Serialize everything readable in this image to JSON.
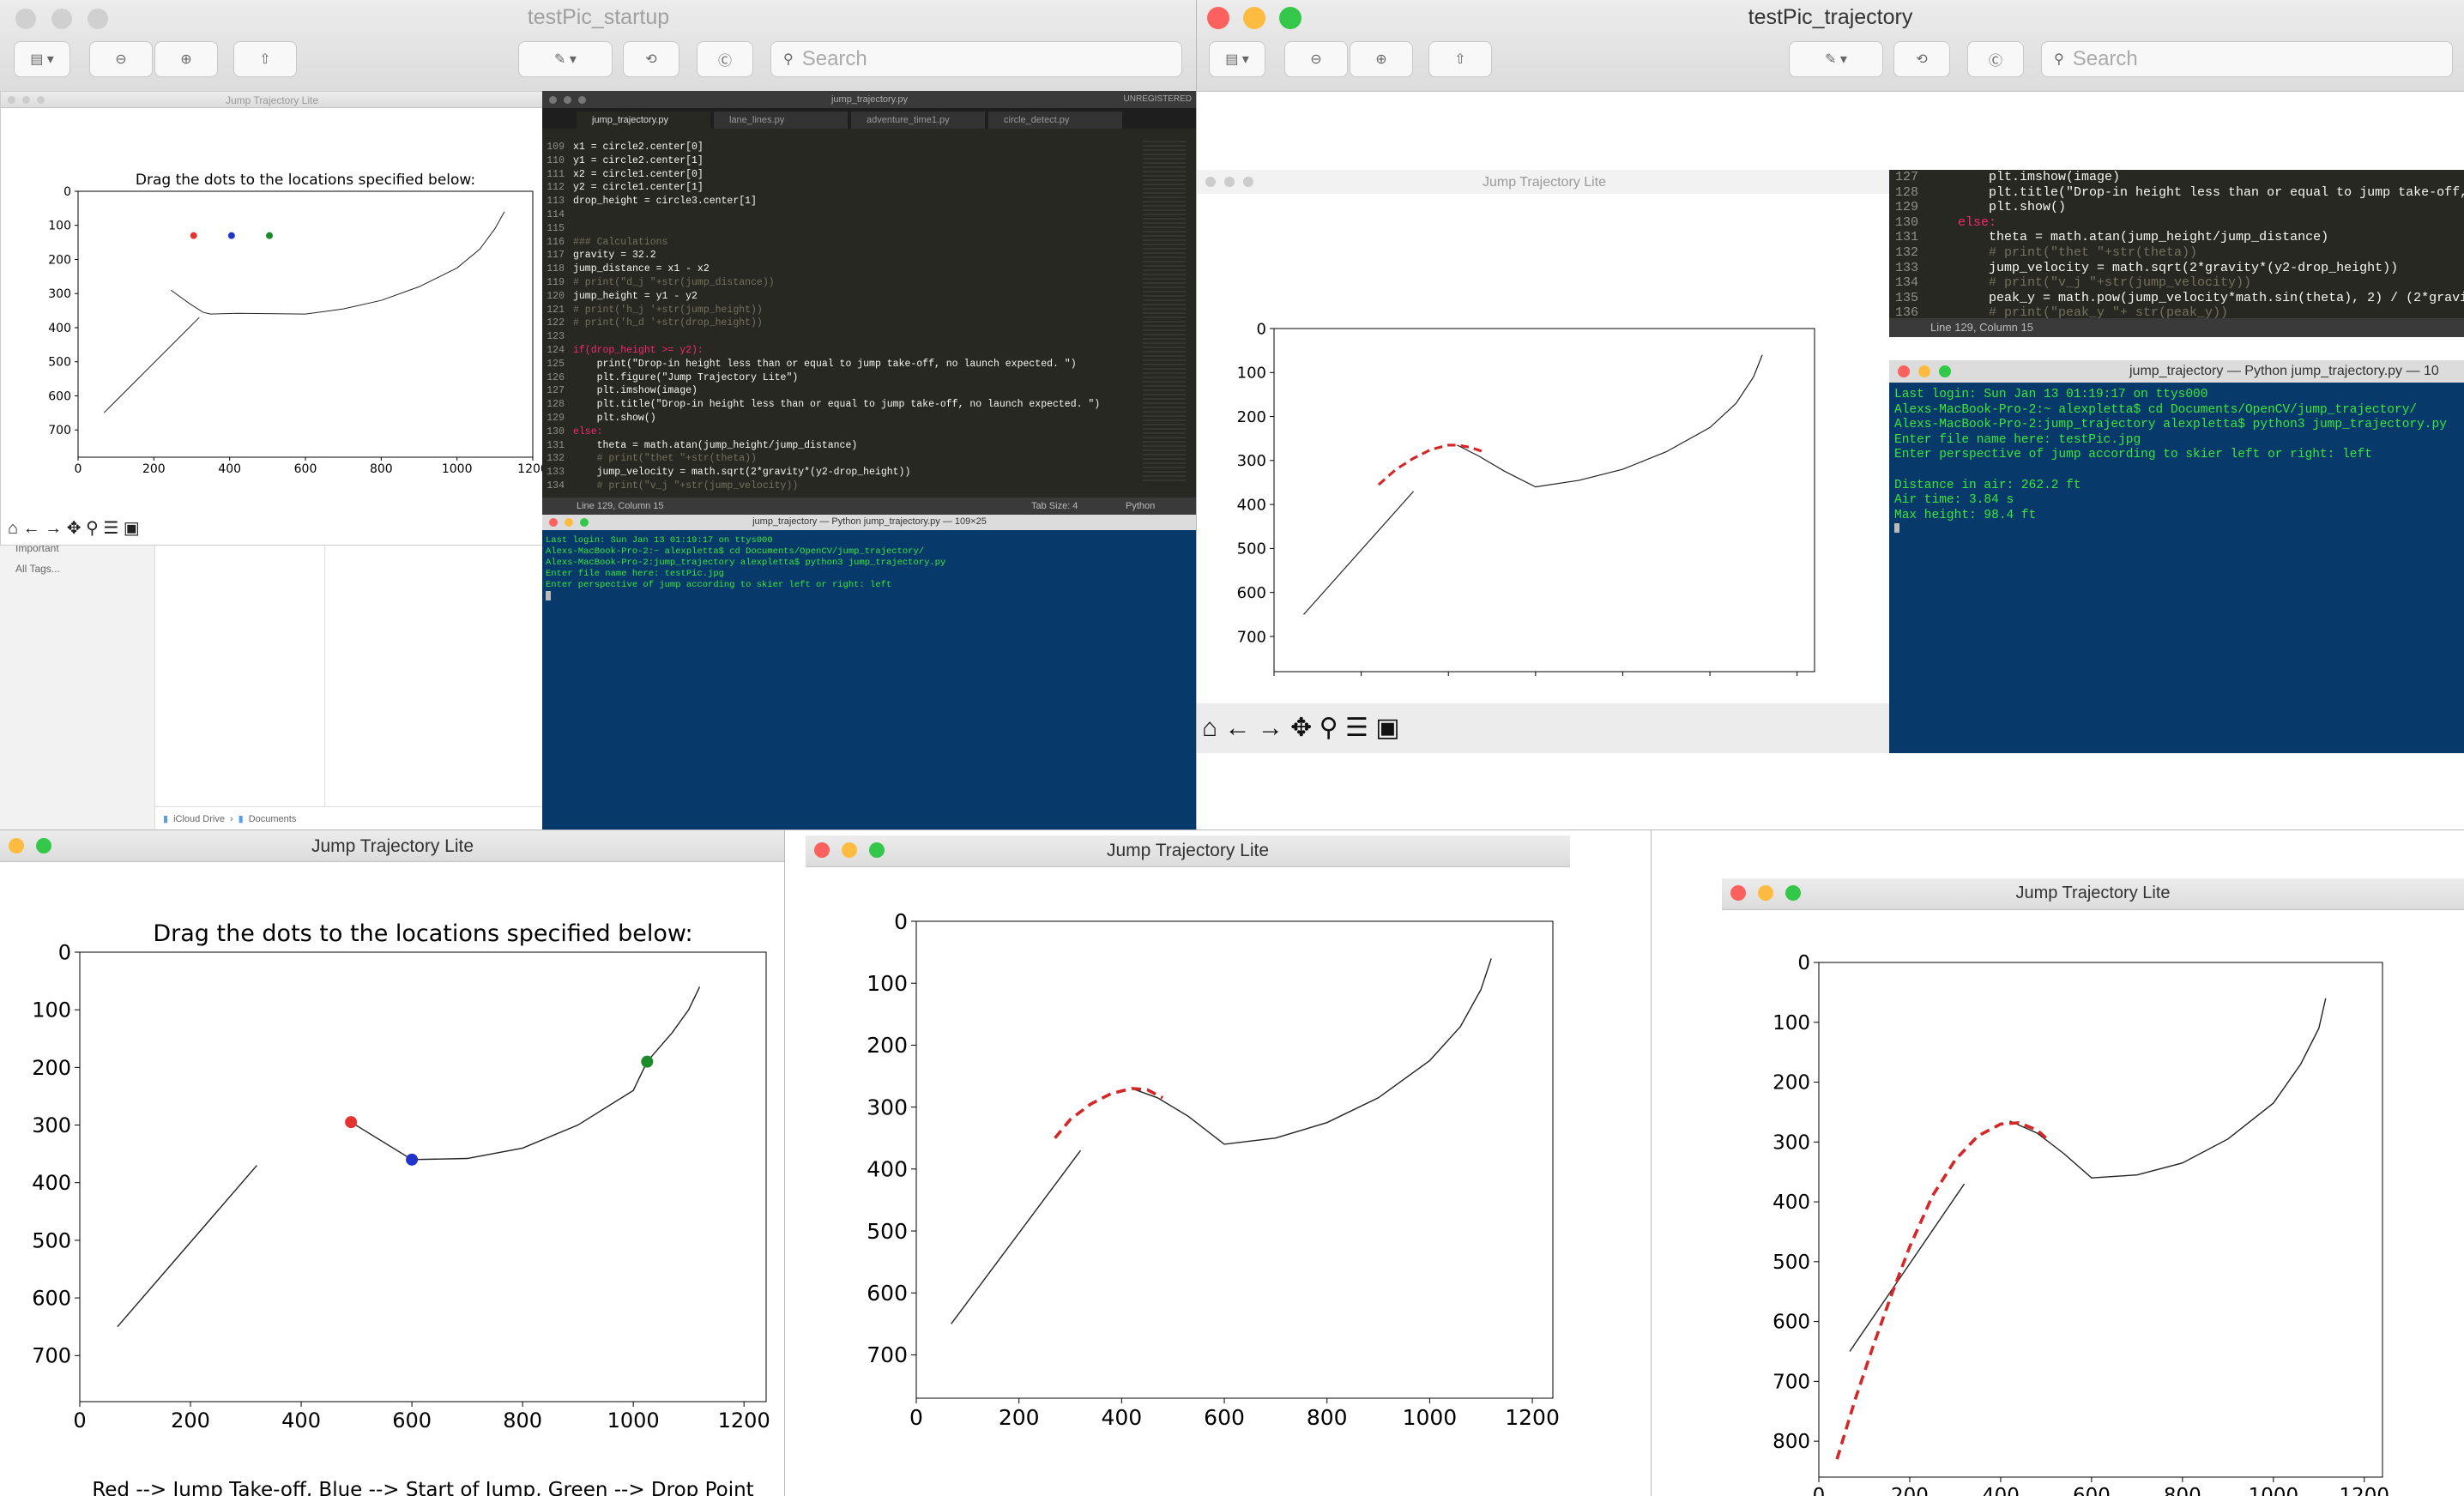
{
  "windows": {
    "preview_startup": {
      "title": "testPic_startup",
      "search_placeholder": "Search"
    },
    "preview_trajectory": {
      "title": "testPic_trajectory",
      "search_placeholder": "Search"
    },
    "mini_plot": {
      "title": "Jump Trajectory Lite",
      "heading": "Drag the dots to the locations specified below:",
      "caption": "Red --> Jump Take-off, Blue --> Start of Jump, Green --> Drop Point"
    },
    "finder_sidebar": {
      "items": [
        "Important",
        "All Tags..."
      ],
      "path": [
        "iCloud Drive",
        "Documents"
      ]
    },
    "editor": {
      "title": "jump_trajectory.py",
      "unregistered": "UNREGISTERED",
      "tabs": [
        "jump_trajectory.py",
        "lane_lines.py",
        "adventure_time1.py",
        "circle_detect.py"
      ],
      "status_left": "Line 129, Column 15",
      "status_tab": "Tab Size: 4",
      "status_lang": "Python",
      "lines": [
        {
          "n": "109",
          "t": "x1 = circle2.center[0]"
        },
        {
          "n": "110",
          "t": "y1 = circle2.center[1]"
        },
        {
          "n": "111",
          "t": "x2 = circle1.center[0]"
        },
        {
          "n": "112",
          "t": "y2 = circle1.center[1]"
        },
        {
          "n": "113",
          "t": "drop_height = circle3.center[1]"
        },
        {
          "n": "114",
          "t": ""
        },
        {
          "n": "115",
          "t": ""
        },
        {
          "n": "116",
          "t": "### Calculations"
        },
        {
          "n": "117",
          "t": "gravity = 32.2"
        },
        {
          "n": "118",
          "t": "jump_distance = x1 - x2"
        },
        {
          "n": "119",
          "t": "# print(\"d_j \"+str(jump_distance))"
        },
        {
          "n": "120",
          "t": "jump_height = y1 - y2"
        },
        {
          "n": "121",
          "t": "# print('h_j '+str(jump_height))"
        },
        {
          "n": "122",
          "t": "# print('h_d '+str(drop_height))"
        },
        {
          "n": "123",
          "t": ""
        },
        {
          "n": "124",
          "t": "if(drop_height >= y2):"
        },
        {
          "n": "125",
          "t": "    print(\"Drop-in height less than or equal to jump take-off, no launch expected. \")"
        },
        {
          "n": "126",
          "t": "    plt.figure(\"Jump Trajectory Lite\")"
        },
        {
          "n": "127",
          "t": "    plt.imshow(image)"
        },
        {
          "n": "128",
          "t": "    plt.title(\"Drop-in height less than or equal to jump take-off, no launch expected. \")"
        },
        {
          "n": "129",
          "t": "    plt.show()"
        },
        {
          "n": "130",
          "t": "else:"
        },
        {
          "n": "131",
          "t": "    theta = math.atan(jump_height/jump_distance)"
        },
        {
          "n": "132",
          "t": "    # print(\"thet \"+str(theta))"
        },
        {
          "n": "133",
          "t": "    jump_velocity = math.sqrt(2*gravity*(y2-drop_height))"
        },
        {
          "n": "134",
          "t": "    # print(\"v_j \"+str(jump_velocity))"
        },
        {
          "n": "135",
          "t": "    peak_y = math.pow(jump_velocity*math.sin(theta), 2) / (2*gravity)"
        },
        {
          "n": "136",
          "t": "    # print(\"peak_y \"+ str(peak_y))"
        }
      ]
    },
    "terminal_small": {
      "title": "jump_trajectory — Python jump_trajectory.py — 109×25",
      "lines": [
        "Last login: Sun Jan 13 01:19:17 on ttys000",
        "Alexs-MacBook-Pro-2:~ alexpletta$ cd Documents/OpenCV/jump_trajectory/",
        "Alexs-MacBook-Pro-2:jump_trajectory alexpletta$ python3 jump_trajectory.py",
        "Enter file name here: testPic.jpg",
        "Enter perspective of jump according to skier left or right: left"
      ]
    },
    "right_editor": {
      "status_left": "Line 129, Column 15",
      "lines": [
        {
          "n": "127",
          "t": "        plt.imshow(image)"
        },
        {
          "n": "128",
          "t": "        plt.title(\"Drop-in height less than or equal to jump take-off, n"
        },
        {
          "n": "129",
          "t": "        plt.show()"
        },
        {
          "n": "130",
          "t": "    else:"
        },
        {
          "n": "131",
          "t": "        theta = math.atan(jump_height/jump_distance)"
        },
        {
          "n": "132",
          "t": "        # print(\"thet \"+str(theta))"
        },
        {
          "n": "133",
          "t": "        jump_velocity = math.sqrt(2*gravity*(y2-drop_height))"
        },
        {
          "n": "134",
          "t": "        # print(\"v_j \"+str(jump_velocity))"
        },
        {
          "n": "135",
          "t": "        peak_y = math.pow(jump_velocity*math.sin(theta), 2) / (2*gravity"
        },
        {
          "n": "136",
          "t": "        # print(\"peak_y \"+ str(peak_y))"
        }
      ]
    },
    "terminal_right": {
      "title": "jump_trajectory — Python jump_trajectory.py — 10",
      "lines": [
        "Last login: Sun Jan 13 01:19:17 on ttys000",
        "Alexs-MacBook-Pro-2:~ alexpletta$ cd Documents/OpenCV/jump_trajectory/",
        "Alexs-MacBook-Pro-2:jump_trajectory alexpletta$ python3 jump_trajectory.py",
        "Enter file name here: testPic.jpg",
        "Enter perspective of jump according to skier left or right: left",
        "",
        "Distance in air: 262.2 ft",
        "Air time: 3.84 s",
        "Max height: 98.4 ft"
      ]
    },
    "inner_plot_right": {
      "title": "Jump Trajectory Lite"
    },
    "bottom_left": {
      "title": "Jump Trajectory Lite",
      "heading": "Drag the dots to the locations specified below:",
      "caption": "Red --> Jump Take-off, Blue --> Start of Jump, Green --> Drop Point"
    },
    "bottom_mid": {
      "title": "Jump Trajectory Lite"
    },
    "bottom_right": {
      "title": "Jump Trajectory Lite"
    }
  },
  "colors": {
    "red_dot": "#e3342f",
    "blue_dot": "#2233cc",
    "green_dot": "#1a8a2a",
    "trajectory": "#d62728",
    "terminal_bg": "#073a6a",
    "terminal_text": "#39e639",
    "editor_bg": "#272822"
  },
  "chart_data": [
    {
      "id": "mini",
      "type": "line",
      "xlim": [
        0,
        1200
      ],
      "ylim": [
        780,
        0
      ],
      "xticks": [
        0,
        200,
        400,
        600,
        800,
        1000,
        1200
      ],
      "yticks": [
        0,
        100,
        200,
        300,
        400,
        500,
        600,
        700
      ],
      "terrain": [
        [
          [
            68,
            650
          ],
          [
            320,
            370
          ]
        ],
        [
          [
            245,
            290
          ],
          [
            295,
            330
          ],
          [
            330,
            355
          ],
          [
            350,
            360
          ],
          [
            420,
            358
          ],
          [
            600,
            360
          ],
          [
            700,
            345
          ],
          [
            800,
            320
          ],
          [
            900,
            280
          ],
          [
            1000,
            225
          ],
          [
            1060,
            170
          ],
          [
            1100,
            110
          ],
          [
            1125,
            60
          ]
        ]
      ],
      "dots": [
        {
          "color": "red",
          "x": 305,
          "y": 130
        },
        {
          "color": "blue",
          "x": 405,
          "y": 130
        },
        {
          "color": "green",
          "x": 505,
          "y": 130
        }
      ],
      "trajectory": []
    },
    {
      "id": "right-inner",
      "type": "line",
      "xlim": [
        0,
        1240
      ],
      "ylim": [
        780,
        0
      ],
      "xticks": [
        0,
        200,
        400,
        600,
        800,
        1000,
        1200
      ],
      "yticks": [
        0,
        100,
        200,
        300,
        400,
        500,
        600,
        700
      ],
      "terrain": [
        [
          [
            68,
            650
          ],
          [
            320,
            370
          ]
        ],
        [
          [
            420,
            265
          ],
          [
            470,
            290
          ],
          [
            530,
            325
          ],
          [
            600,
            360
          ],
          [
            700,
            345
          ],
          [
            800,
            320
          ],
          [
            900,
            280
          ],
          [
            1000,
            225
          ],
          [
            1060,
            170
          ],
          [
            1100,
            110
          ],
          [
            1120,
            60
          ]
        ]
      ],
      "dots": [],
      "trajectory": [
        [
          240,
          355
        ],
        [
          280,
          320
        ],
        [
          320,
          295
        ],
        [
          360,
          275
        ],
        [
          400,
          265
        ],
        [
          420,
          265
        ],
        [
          450,
          270
        ],
        [
          480,
          280
        ]
      ]
    },
    {
      "id": "bottom-left",
      "type": "line",
      "xlim": [
        0,
        1240
      ],
      "ylim": [
        780,
        0
      ],
      "xticks": [
        0,
        200,
        400,
        600,
        800,
        1000,
        1200
      ],
      "yticks": [
        0,
        100,
        200,
        300,
        400,
        500,
        600,
        700
      ],
      "terrain": [
        [
          [
            68,
            650
          ],
          [
            320,
            370
          ]
        ],
        [
          [
            490,
            295
          ],
          [
            600,
            360
          ],
          [
            700,
            358
          ],
          [
            800,
            340
          ],
          [
            900,
            300
          ],
          [
            1000,
            240
          ],
          [
            1025,
            190
          ],
          [
            1070,
            140
          ],
          [
            1100,
            100
          ],
          [
            1120,
            60
          ]
        ]
      ],
      "dots": [
        {
          "color": "red",
          "x": 490,
          "y": 295
        },
        {
          "color": "blue",
          "x": 600,
          "y": 360
        },
        {
          "color": "green",
          "x": 1025,
          "y": 190
        }
      ],
      "trajectory": []
    },
    {
      "id": "bottom-mid",
      "type": "line",
      "xlim": [
        0,
        1240
      ],
      "ylim": [
        770,
        0
      ],
      "xticks": [
        0,
        200,
        400,
        600,
        800,
        1000,
        1200
      ],
      "yticks": [
        0,
        100,
        200,
        300,
        400,
        500,
        600,
        700
      ],
      "terrain": [
        [
          [
            68,
            650
          ],
          [
            320,
            370
          ]
        ],
        [
          [
            420,
            270
          ],
          [
            470,
            285
          ],
          [
            530,
            315
          ],
          [
            600,
            360
          ],
          [
            700,
            350
          ],
          [
            800,
            325
          ],
          [
            900,
            285
          ],
          [
            1000,
            225
          ],
          [
            1060,
            170
          ],
          [
            1100,
            110
          ],
          [
            1120,
            60
          ]
        ]
      ],
      "dots": [],
      "trajectory": [
        [
          270,
          350
        ],
        [
          300,
          320
        ],
        [
          340,
          295
        ],
        [
          380,
          278
        ],
        [
          420,
          270
        ],
        [
          450,
          272
        ],
        [
          480,
          285
        ]
      ]
    },
    {
      "id": "bottom-right",
      "type": "line",
      "xlim": [
        0,
        1240
      ],
      "ylim": [
        860,
        0
      ],
      "xticks": [
        0,
        200,
        400,
        600,
        800,
        1000,
        1200
      ],
      "yticks": [
        0,
        100,
        200,
        300,
        400,
        500,
        600,
        700,
        800
      ],
      "terrain": [
        [
          [
            68,
            650
          ],
          [
            320,
            370
          ]
        ],
        [
          [
            420,
            265
          ],
          [
            480,
            285
          ],
          [
            540,
            320
          ],
          [
            600,
            360
          ],
          [
            700,
            355
          ],
          [
            800,
            335
          ],
          [
            900,
            295
          ],
          [
            1000,
            235
          ],
          [
            1060,
            170
          ],
          [
            1100,
            110
          ],
          [
            1115,
            60
          ]
        ]
      ],
      "dots": [],
      "trajectory": [
        [
          40,
          830
        ],
        [
          80,
          730
        ],
        [
          120,
          640
        ],
        [
          160,
          555
        ],
        [
          200,
          475
        ],
        [
          250,
          390
        ],
        [
          300,
          330
        ],
        [
          350,
          290
        ],
        [
          400,
          270
        ],
        [
          440,
          268
        ],
        [
          480,
          280
        ],
        [
          510,
          300
        ]
      ]
    }
  ]
}
